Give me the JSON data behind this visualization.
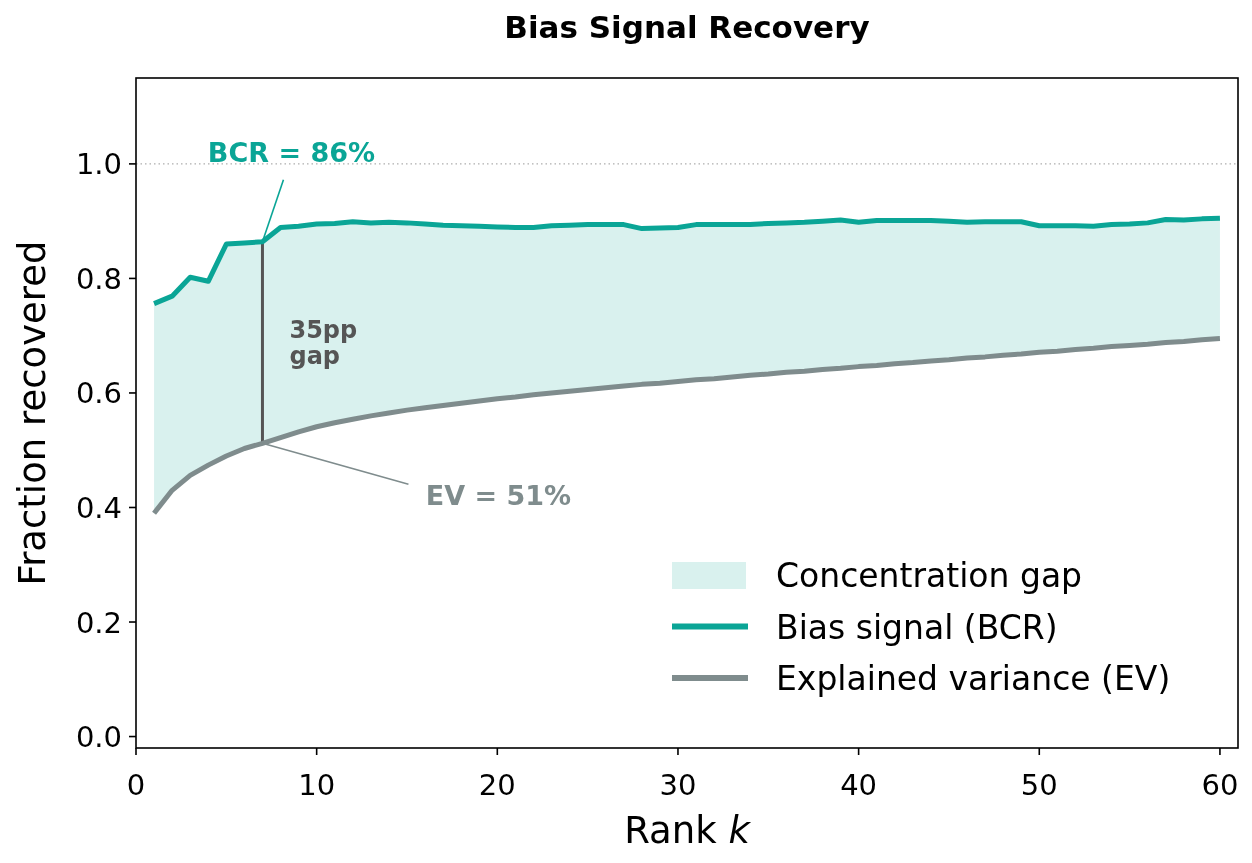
{
  "chart_data": {
    "type": "line",
    "title": "Bias Signal Recovery",
    "xlabel": "Rank k",
    "ylabel": "Fraction recovered",
    "x": [
      1,
      2,
      3,
      4,
      5,
      6,
      7,
      8,
      9,
      10,
      11,
      12,
      13,
      14,
      15,
      16,
      17,
      18,
      19,
      20,
      21,
      22,
      23,
      24,
      25,
      26,
      27,
      28,
      29,
      30,
      31,
      32,
      33,
      34,
      35,
      36,
      37,
      38,
      39,
      40,
      41,
      42,
      43,
      44,
      45,
      46,
      47,
      48,
      49,
      50,
      51,
      52,
      53,
      54,
      55,
      56,
      57,
      58,
      59,
      60
    ],
    "xlim": [
      0,
      61
    ],
    "xticks": [
      0,
      10,
      20,
      30,
      40,
      50,
      60
    ],
    "ylim": [
      -0.02,
      1.15
    ],
    "yticks": [
      {
        "value": 0,
        "label": "0.0"
      },
      0.2,
      0.4,
      0.6,
      0.8,
      {
        "value": 1,
        "label": "1.0"
      }
    ],
    "legend": "bottom right",
    "ref_lines": [
      {
        "axis": "y",
        "value": 1,
        "color": "#999999",
        "line_style": "dotted"
      }
    ],
    "series": [
      {
        "name": "Concentration gap",
        "color": "#d9f1ee",
        "values": [
          null,
          null,
          null,
          null,
          null,
          null,
          null,
          null,
          null,
          null,
          null,
          null,
          null,
          null,
          null,
          null,
          null,
          null,
          null,
          null,
          null,
          null,
          null,
          null,
          null,
          null,
          null,
          null,
          null,
          null,
          null,
          null,
          null,
          null,
          null,
          null,
          null,
          null,
          null,
          null,
          null,
          null,
          null,
          null,
          null,
          null,
          null,
          null,
          null,
          null,
          null,
          null,
          null,
          null,
          null,
          null,
          null,
          null,
          null,
          null
        ],
        "lower": [
          0.39,
          0.43,
          0.456,
          0.474,
          0.49,
          0.503,
          0.512,
          0.522,
          0.532,
          0.541,
          0.548,
          0.554,
          0.56,
          0.565,
          0.57,
          0.574,
          0.578,
          0.582,
          0.586,
          0.59,
          0.593,
          0.597,
          0.6,
          0.603,
          0.606,
          0.609,
          0.612,
          0.615,
          0.617,
          0.62,
          0.623,
          0.625,
          0.628,
          0.631,
          0.633,
          0.636,
          0.638,
          0.641,
          0.643,
          0.646,
          0.648,
          0.651,
          0.653,
          0.656,
          0.658,
          0.661,
          0.663,
          0.666,
          0.668,
          0.671,
          0.673,
          0.676,
          0.678,
          0.681,
          0.683,
          0.685,
          0.688,
          0.69,
          0.693,
          0.695
        ],
        "upper": [
          0.756,
          0.769,
          0.802,
          0.795,
          0.86,
          0.862,
          0.864,
          0.889,
          0.891,
          0.895,
          0.896,
          0.899,
          0.897,
          0.898,
          0.897,
          0.895,
          0.893,
          0.892,
          0.891,
          0.89,
          0.889,
          0.889,
          0.892,
          0.893,
          0.894,
          0.894,
          0.894,
          0.887,
          0.888,
          0.889,
          0.894,
          0.894,
          0.894,
          0.894,
          0.896,
          0.897,
          0.898,
          0.9,
          0.902,
          0.898,
          0.901,
          0.901,
          0.901,
          0.901,
          0.9,
          0.898,
          0.899,
          0.899,
          0.899,
          0.892,
          0.892,
          0.892,
          0.891,
          0.894,
          0.895,
          0.897,
          0.903,
          0.902,
          0.904,
          0.905
        ]
      },
      {
        "name": "Bias signal (BCR)",
        "color": "#0aa596",
        "values": [
          0.756,
          0.769,
          0.802,
          0.795,
          0.86,
          0.862,
          0.864,
          0.889,
          0.891,
          0.895,
          0.896,
          0.899,
          0.897,
          0.898,
          0.897,
          0.895,
          0.893,
          0.892,
          0.891,
          0.89,
          0.889,
          0.889,
          0.892,
          0.893,
          0.894,
          0.894,
          0.894,
          0.887,
          0.888,
          0.889,
          0.894,
          0.894,
          0.894,
          0.894,
          0.896,
          0.897,
          0.898,
          0.9,
          0.902,
          0.898,
          0.901,
          0.901,
          0.901,
          0.901,
          0.9,
          0.898,
          0.899,
          0.899,
          0.899,
          0.892,
          0.892,
          0.892,
          0.891,
          0.894,
          0.895,
          0.897,
          0.903,
          0.902,
          0.904,
          0.905
        ]
      },
      {
        "name": "Explained variance (EV)",
        "color": "#7f8c8d",
        "values": [
          0.39,
          0.43,
          0.456,
          0.474,
          0.49,
          0.503,
          0.512,
          0.522,
          0.532,
          0.541,
          0.548,
          0.554,
          0.56,
          0.565,
          0.57,
          0.574,
          0.578,
          0.582,
          0.586,
          0.59,
          0.593,
          0.597,
          0.6,
          0.603,
          0.606,
          0.609,
          0.612,
          0.615,
          0.617,
          0.62,
          0.623,
          0.625,
          0.628,
          0.631,
          0.633,
          0.636,
          0.638,
          0.641,
          0.643,
          0.646,
          0.648,
          0.651,
          0.653,
          0.656,
          0.658,
          0.661,
          0.663,
          0.666,
          0.668,
          0.671,
          0.673,
          0.676,
          0.678,
          0.681,
          0.683,
          0.685,
          0.688,
          0.69,
          0.693,
          0.695
        ]
      }
    ],
    "annotations": [
      {
        "text": "BCR = 86%",
        "x": 7,
        "y": 0.864
      },
      "35pp\ngap",
      {
        "text": "EV = 51%",
        "x": 7,
        "y": 0.512
      }
    ]
  }
}
